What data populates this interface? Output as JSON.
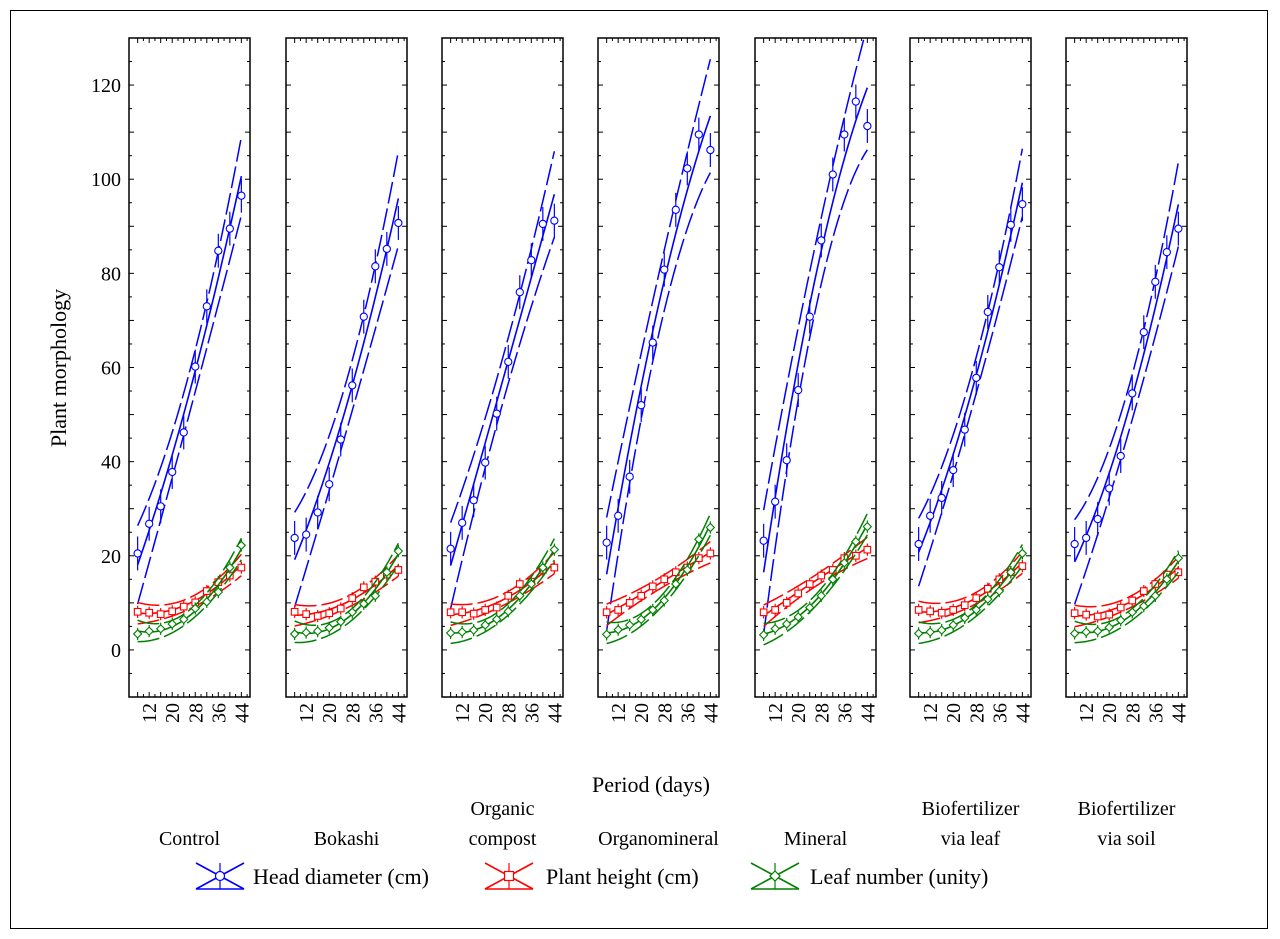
{
  "chart_data": {
    "type": "line",
    "ylabel": "Plant morphology",
    "xlabel": "Period (days)",
    "ylim": [
      -10,
      130
    ],
    "yticks": [
      0,
      20,
      40,
      60,
      80,
      100,
      120
    ],
    "xticks": [
      12,
      20,
      28,
      36,
      44
    ],
    "xlim": [
      5,
      47
    ],
    "days": [
      8,
      12,
      16,
      20,
      24,
      28,
      32,
      36,
      40,
      44
    ],
    "legend_position": "bottom",
    "grid": false,
    "series_meta": [
      {
        "name": "Head diameter (cm)",
        "color": "#0000ff",
        "marker": "circle"
      },
      {
        "name": "Plant height (cm)",
        "color": "#ff0000",
        "marker": "square"
      },
      {
        "name": "Leaf number (unity)",
        "color": "#008000",
        "marker": "diamond"
      }
    ],
    "panels": [
      {
        "label": [
          "Control"
        ],
        "series": [
          {
            "name": "Head diameter (cm)",
            "values": [
              20.5,
              26.8,
              30.5,
              37.8,
              46.2,
              60.2,
              73,
              84.8,
              89.5,
              96.5
            ]
          },
          {
            "name": "Plant height (cm)",
            "values": [
              8.1,
              7.9,
              7.6,
              8.2,
              9.2,
              10.1,
              12.5,
              14.4,
              15.8,
              17.5
            ]
          },
          {
            "name": "Leaf number (unity)",
            "values": [
              3.4,
              4.0,
              4.5,
              5.5,
              6.5,
              8.8,
              10.2,
              12.3,
              17.5,
              22.2
            ]
          }
        ]
      },
      {
        "label": [
          "Bokashi"
        ],
        "series": [
          {
            "name": "Head diameter (cm)",
            "values": [
              23.8,
              24.5,
              29.2,
              35.2,
              44.7,
              56.2,
              70.8,
              81.5,
              85.2,
              90.7
            ]
          },
          {
            "name": "Plant height (cm)",
            "values": [
              8.1,
              7.6,
              7.2,
              7.8,
              8.8,
              11.0,
              13.3,
              14.5,
              16.0,
              17.0
            ]
          },
          {
            "name": "Leaf number (unity)",
            "values": [
              3.4,
              3.7,
              4.0,
              4.7,
              6.0,
              8.0,
              9.8,
              11.5,
              16.5,
              21.0
            ]
          }
        ]
      },
      {
        "label": [
          "Organic",
          "compost"
        ],
        "series": [
          {
            "name": "Head diameter (cm)",
            "values": [
              21.5,
              27.0,
              31.8,
              39.8,
              50.2,
              61.2,
              76.0,
              82.8,
              90.5,
              91.2
            ]
          },
          {
            "name": "Plant height (cm)",
            "values": [
              8.0,
              8.0,
              7.7,
              8.5,
              9.0,
              11.5,
              14.0,
              14.5,
              17.0,
              17.5
            ]
          },
          {
            "name": "Leaf number (unity)",
            "values": [
              3.6,
              3.8,
              4.2,
              5.3,
              6.5,
              8.2,
              11.5,
              14.0,
              17.5,
              21.3
            ]
          }
        ]
      },
      {
        "label": [
          "Organomineral"
        ],
        "series": [
          {
            "name": "Head diameter (cm)",
            "values": [
              22.8,
              28.5,
              36.8,
              52.0,
              65.3,
              80.8,
              93.5,
              102.3,
              109.5,
              106.2
            ]
          },
          {
            "name": "Plant height (cm)",
            "values": [
              8.0,
              8.5,
              10.0,
              11.5,
              13.5,
              15.0,
              16.5,
              17.5,
              19.5,
              20.5
            ]
          },
          {
            "name": "Leaf number (unity)",
            "values": [
              3.3,
              4.3,
              5.3,
              6.5,
              8.5,
              10.5,
              14.0,
              17.0,
              23.5,
              26.0
            ]
          }
        ]
      },
      {
        "label": [
          "Mineral"
        ],
        "series": [
          {
            "name": "Head diameter (cm)",
            "values": [
              23.2,
              31.5,
              40.3,
              55.2,
              70.8,
              87.0,
              101.0,
              109.5,
              116.5,
              111.3
            ]
          },
          {
            "name": "Plant height (cm)",
            "values": [
              8.0,
              8.5,
              10.0,
              12.0,
              14.0,
              15.8,
              17.0,
              19.5,
              20.0,
              21.3
            ]
          },
          {
            "name": "Leaf number (unity)",
            "values": [
              3.2,
              4.5,
              5.5,
              7.0,
              9.0,
              11.5,
              15.0,
              18.5,
              23.0,
              26.2
            ]
          }
        ]
      },
      {
        "label": [
          "Biofertilizer",
          "via leaf"
        ],
        "series": [
          {
            "name": "Head diameter (cm)",
            "values": [
              22.5,
              28.5,
              32.3,
              38.2,
              46.8,
              57.8,
              71.8,
              81.3,
              90.3,
              94.7
            ]
          },
          {
            "name": "Plant height (cm)",
            "values": [
              8.5,
              8.2,
              7.9,
              8.5,
              9.5,
              11.0,
              13.0,
              15.0,
              16.5,
              17.8
            ]
          },
          {
            "name": "Leaf number (unity)",
            "values": [
              3.5,
              3.8,
              4.2,
              5.3,
              6.8,
              8.5,
              10.8,
              12.5,
              16.5,
              20.5
            ]
          }
        ]
      },
      {
        "label": [
          "Biofertilizer",
          "via soil"
        ],
        "series": [
          {
            "name": "Head diameter (cm)",
            "values": [
              22.5,
              23.8,
              27.8,
              34.3,
              41.2,
              54.5,
              67.5,
              78.2,
              84.5,
              89.5
            ]
          },
          {
            "name": "Plant height (cm)",
            "values": [
              7.8,
              7.5,
              7.1,
              7.5,
              9.0,
              10.5,
              12.5,
              14.0,
              16.0,
              16.5
            ]
          },
          {
            "name": "Leaf number (unity)",
            "values": [
              3.5,
              3.8,
              4.0,
              4.8,
              6.3,
              8.0,
              9.3,
              11.5,
              15.0,
              19.5
            ]
          }
        ]
      }
    ]
  }
}
